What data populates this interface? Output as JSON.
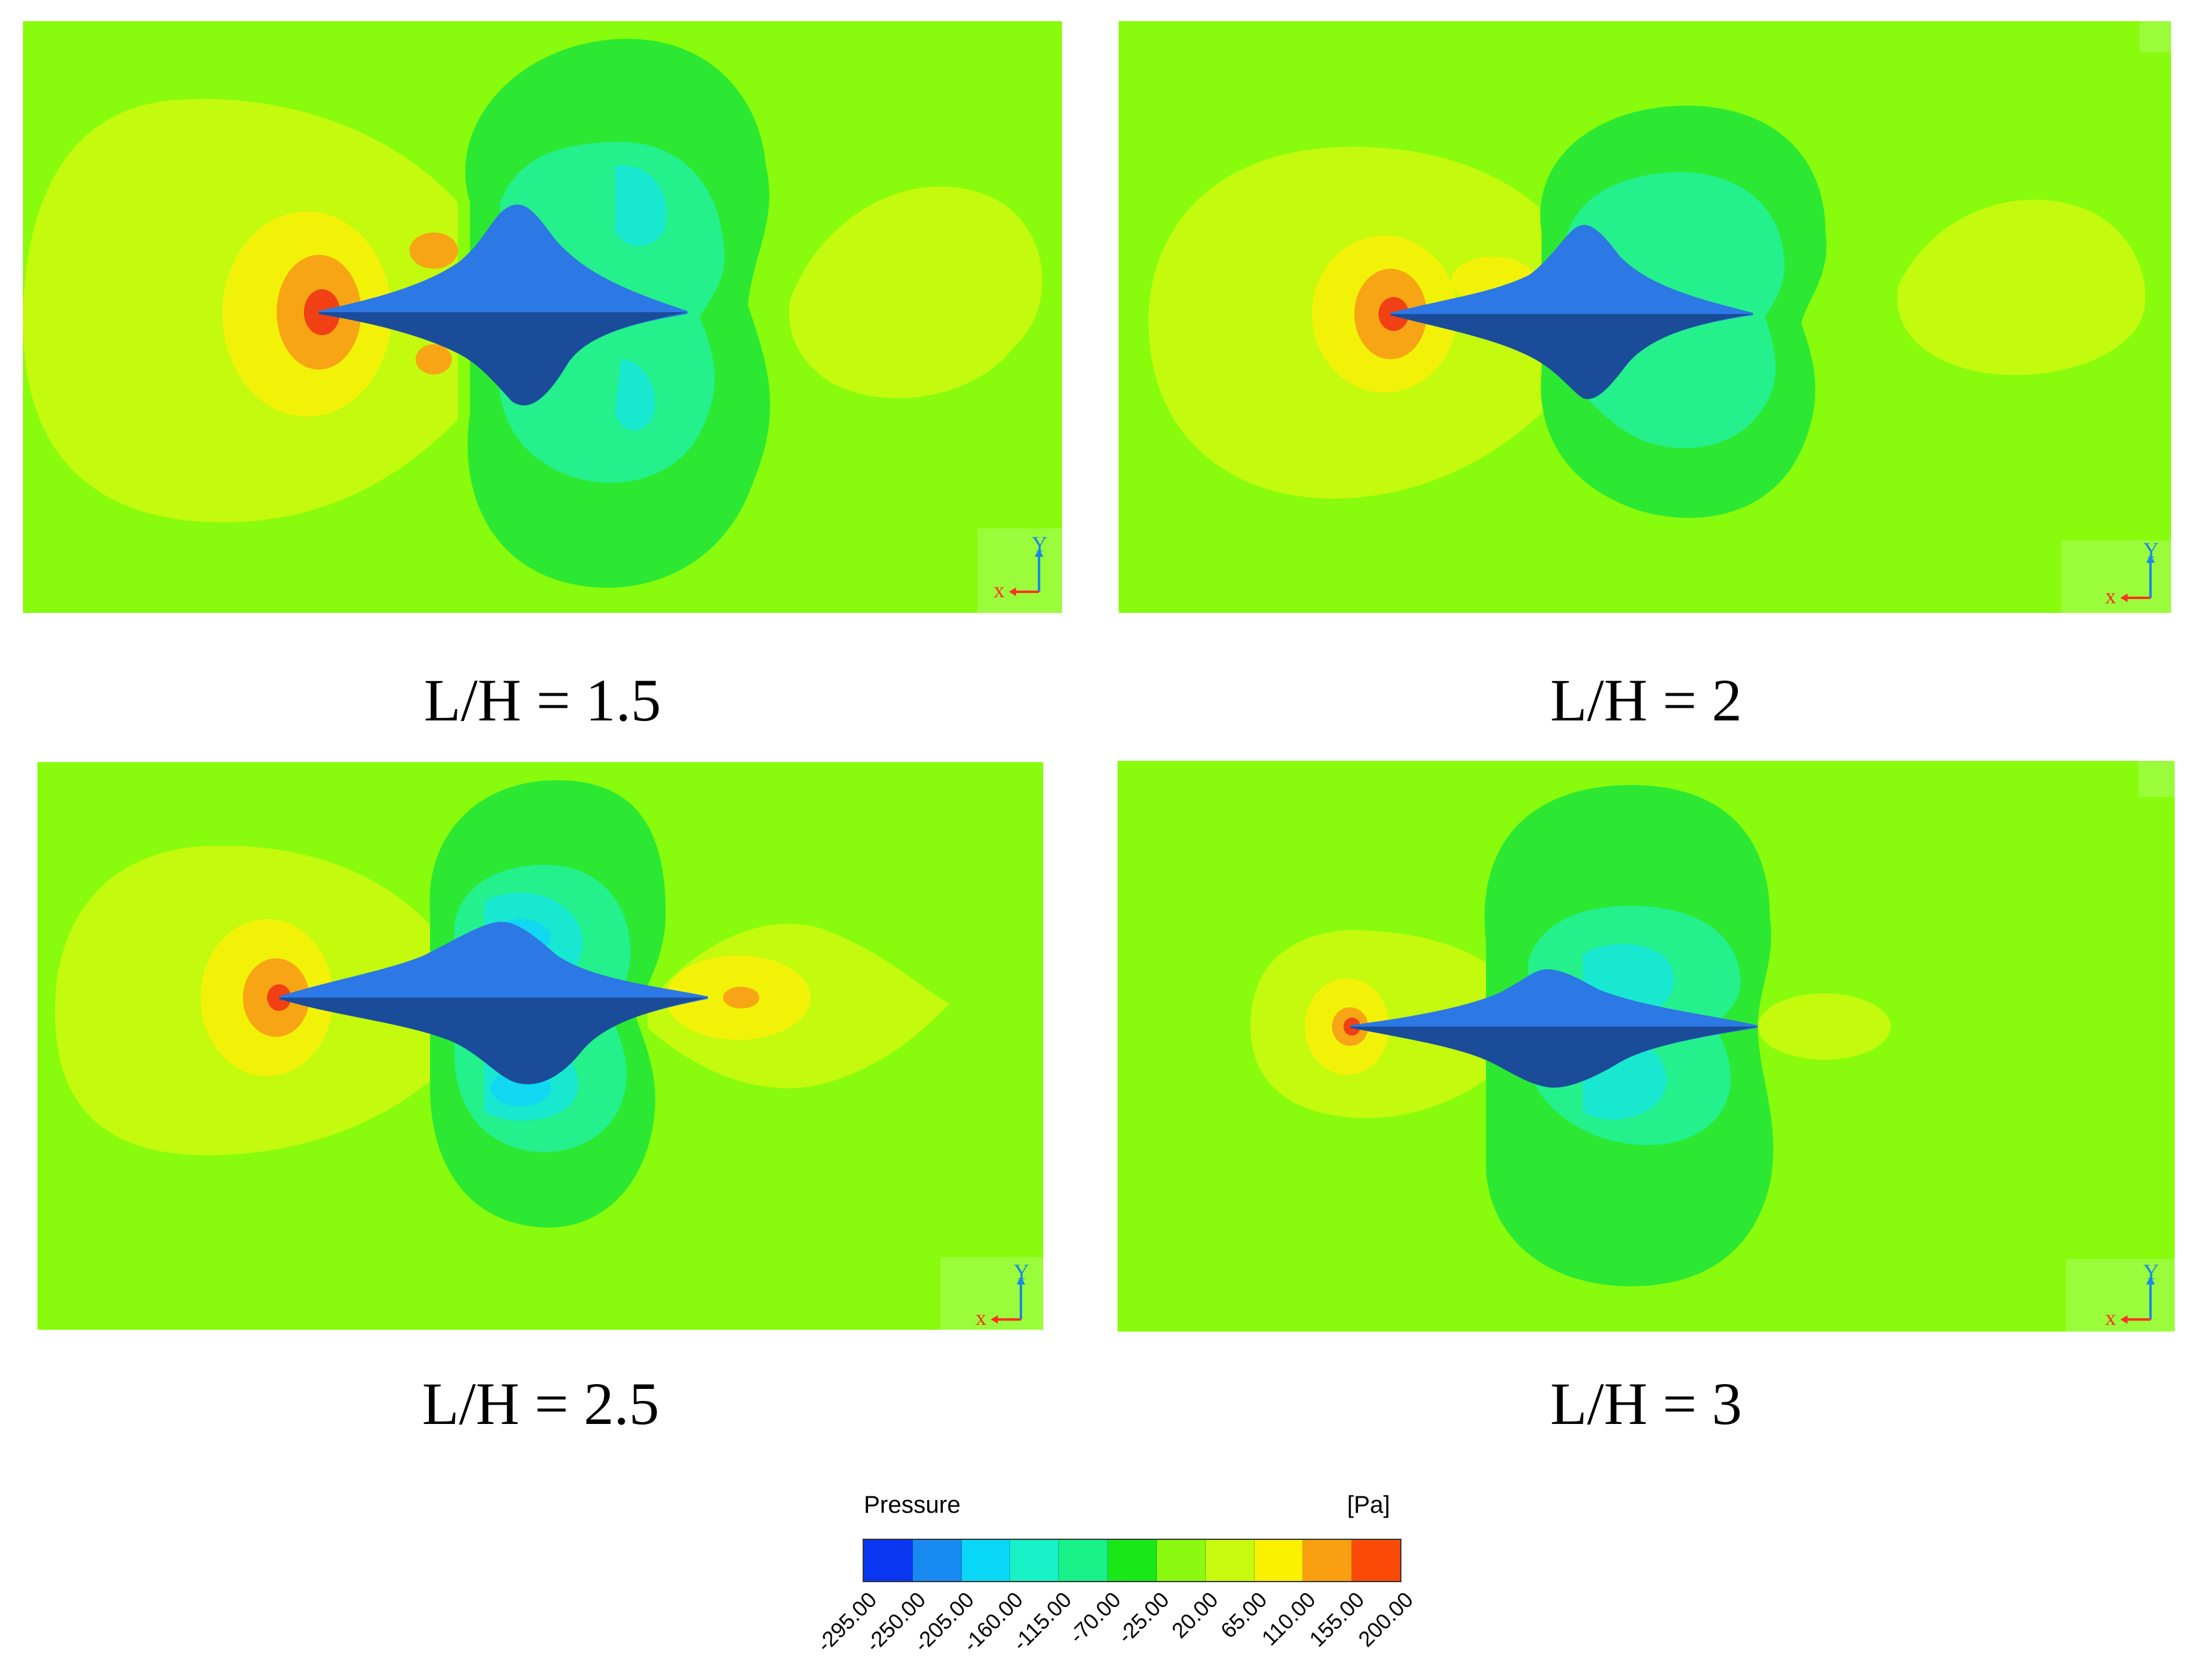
{
  "panels": [
    {
      "caption": "L/H = 1.5",
      "axis_y": "Y",
      "axis_x": "x"
    },
    {
      "caption": "L/H = 2",
      "axis_y": "Y",
      "axis_x": "x"
    },
    {
      "caption": "L/H = 2.5",
      "axis_y": "Y",
      "axis_x": "x"
    },
    {
      "caption": "L/H = 3",
      "axis_y": "Y",
      "axis_x": "x"
    }
  ],
  "legend": {
    "title": "Pressure",
    "unit": "[Pa]",
    "ticks": [
      "-295.00",
      "-250.00",
      "-205.00",
      "-160.00",
      "-115.00",
      "-70.00",
      "-25.00",
      "20.00",
      "65.00",
      "110.00",
      "155.00",
      "200.00"
    ],
    "colors": [
      "#0a37f2",
      "#1889f0",
      "#08d8f5",
      "#18f0c8",
      "#18f088",
      "#18e818",
      "#8cfa10",
      "#c8fa10",
      "#faf000",
      "#faa010",
      "#fa4a08"
    ]
  },
  "colors": {
    "background_field": "#88fc0c",
    "far_halo": "#c3fa0e",
    "mid_halo": "#f2f208",
    "near_stag": "#f7a514",
    "stag_core": "#f04014",
    "neg_outer": "#2ce832",
    "neg_mid": "#24f08c",
    "neg_inner": "#18e8d0",
    "neg_core": "#10d8f0",
    "body": "#2c78e4"
  }
}
